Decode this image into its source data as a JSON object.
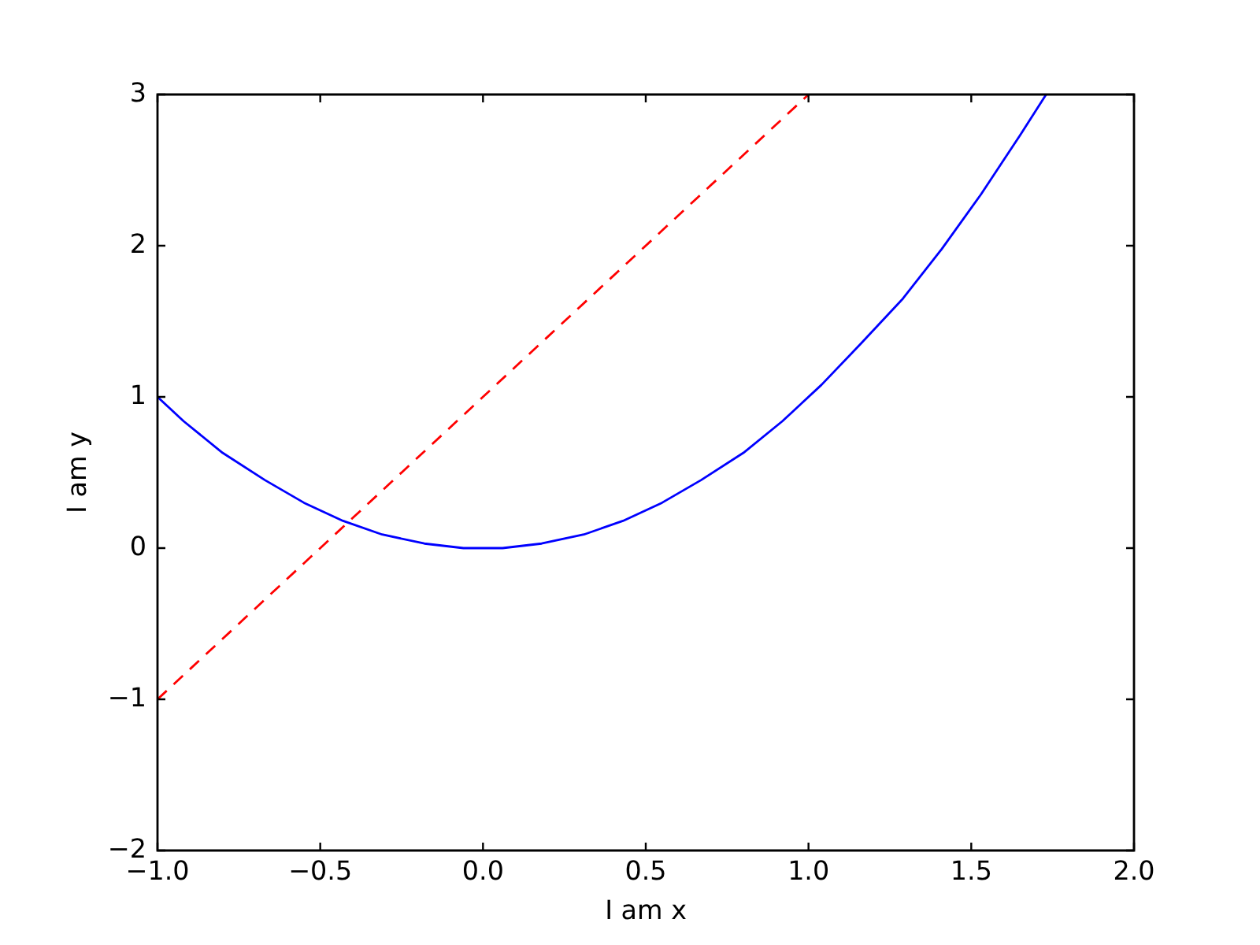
{
  "chart_data": {
    "type": "line",
    "xlabel": "I am x",
    "ylabel": "I am y",
    "xlim": [
      -1,
      2
    ],
    "ylim": [
      -2,
      3
    ],
    "xticks": [
      {
        "value": -1,
        "label": "−1.0"
      },
      {
        "value": -0.5,
        "label": "−0.5"
      },
      {
        "value": 0,
        "label": "0.0"
      },
      {
        "value": 0.5,
        "label": "0.5"
      },
      {
        "value": 1,
        "label": "1.0"
      },
      {
        "value": 1.5,
        "label": "1.5"
      },
      {
        "value": 2,
        "label": "2.0"
      }
    ],
    "yticks": [
      {
        "value": -2,
        "label": "−2"
      },
      {
        "value": -1,
        "label": "−1"
      },
      0,
      1,
      2,
      3
    ],
    "marker": "none",
    "series": [
      {
        "color": "#0000ff",
        "line_style": "solid",
        "x": [
          -1,
          -0.92,
          -0.8,
          -0.67,
          -0.55,
          -0.43,
          -0.31,
          -0.18,
          -0.06,
          0.06,
          0.18,
          0.31,
          0.43,
          0.55,
          0.67,
          0.8,
          0.92,
          1.04,
          1.16,
          1.29,
          1.41,
          1.53,
          1.65,
          1.73
        ],
        "values": [
          1.0,
          0.84,
          0.63,
          0.45,
          0.3,
          0.18,
          0.09,
          0.03,
          0.0,
          0.0,
          0.03,
          0.09,
          0.18,
          0.3,
          0.45,
          0.63,
          0.84,
          1.08,
          1.35,
          1.65,
          1.98,
          2.34,
          2.73,
          3.0
        ]
      },
      {
        "color": "#ff0000",
        "line_style": "dashed",
        "x": [
          -1,
          1
        ],
        "values": [
          -1,
          3
        ]
      }
    ]
  }
}
